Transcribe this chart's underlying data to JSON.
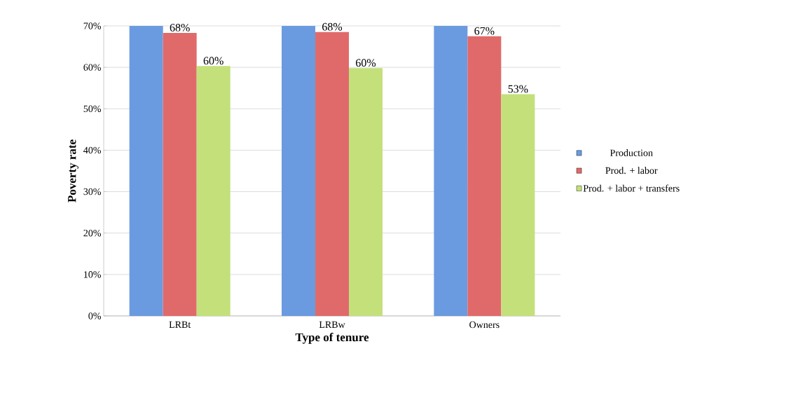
{
  "chart_data": {
    "type": "bar",
    "xlabel": "Type of tenure",
    "ylabel": "Poverty rate",
    "categories": [
      "LRBt",
      "LRBw",
      "Owners"
    ],
    "series": [
      {
        "name": "Production",
        "color": "#6a9be0",
        "values": [
          70,
          70,
          70
        ]
      },
      {
        "name": "Prod. + labor",
        "color": "#e06a6a",
        "values": [
          68.3,
          68.5,
          67.5
        ],
        "value_labels": [
          "68%",
          "68%",
          "67%"
        ]
      },
      {
        "name": "Prod. + labor + transfers",
        "color": "#c3e07a",
        "values": [
          60.3,
          59.8,
          53.5
        ],
        "value_labels": [
          "60%",
          "60%",
          "53%"
        ]
      }
    ],
    "ylim": [
      0,
      70
    ],
    "yticks": [
      {
        "value": 0,
        "label": "0%"
      },
      {
        "value": 10,
        "label": "10%"
      },
      {
        "value": 20,
        "label": "20%"
      },
      {
        "value": 30,
        "label": "30%"
      },
      {
        "value": 40,
        "label": "40%"
      },
      {
        "value": 50,
        "label": "50%"
      },
      {
        "value": 60,
        "label": "60%"
      },
      {
        "value": 70,
        "label": "70%"
      }
    ],
    "grid": "y",
    "legend": "right"
  }
}
